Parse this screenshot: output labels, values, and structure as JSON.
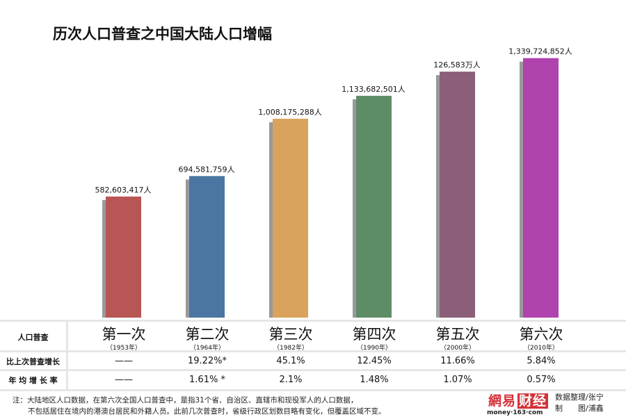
{
  "title": "历次人口普查之中国大陆人口增幅",
  "chart_data": {
    "type": "bar",
    "title": "历次人口普查之中国大陆人口增幅",
    "categories": [
      "第一次",
      "第二次",
      "第三次",
      "第四次",
      "第五次",
      "第六次"
    ],
    "years": [
      "（1953年）",
      "（1964年）",
      "（1982年）",
      "（1990年）",
      "（2000年）",
      "（2010年）"
    ],
    "values": [
      582603417,
      694581759,
      1008175288,
      1133682501,
      1265830000,
      1339724852
    ],
    "data_labels": [
      "582,603,417人",
      "694,581,759人",
      "1,008,175,288人",
      "1,133,682,501人",
      "126,583万人",
      "1,339,724,852人"
    ],
    "colors": [
      "#b85555",
      "#4a76a1",
      "#d9a35e",
      "#5e8c66",
      "#8c5f78",
      "#b043ad"
    ],
    "shadow_color": "#999999"
  },
  "table": {
    "header_label": "人口普查",
    "rows": [
      {
        "label": "比上次普查增长",
        "values": [
          "——",
          "19.22%*",
          "45.1%",
          "12.45%",
          "11.66%",
          "5.84%"
        ]
      },
      {
        "label": "年 均 增 长 率",
        "values": [
          "——",
          "1.61% *",
          "2.1%",
          "1.48%",
          "1.07%",
          "0.57%"
        ]
      }
    ]
  },
  "note": {
    "line1": "注：大陆地区人口数据，在第六次全国人口普查中，是指31个省、自治区、直辖市和现役军人的人口数据，",
    "line2": "不包括居住在境内的港澳台居民和外籍人员。此前几次普查时，省级行政区划数目略有变化，但覆盖区域不变。"
  },
  "logo": {
    "name_part1": "網易",
    "name_part2": "财经",
    "url": "money·163·com"
  },
  "credit": {
    "line1": "数据整理/张宁",
    "line2": "制　　图/浦鑫"
  }
}
